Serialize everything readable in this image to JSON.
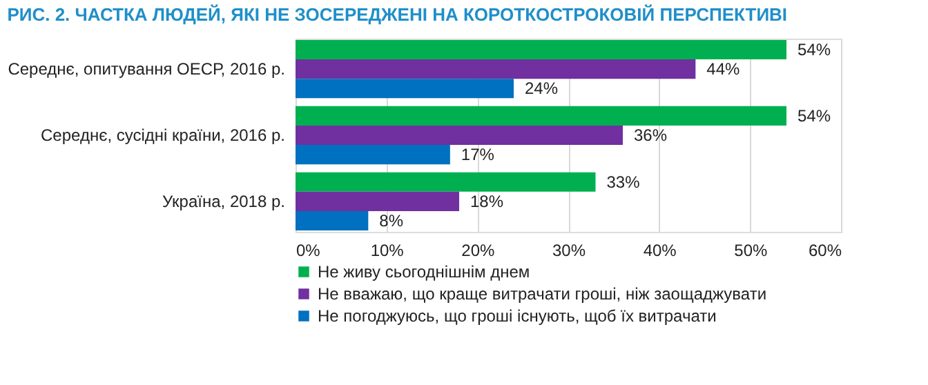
{
  "chart_data": {
    "type": "bar",
    "orientation": "horizontal",
    "title": "РИС. 2. ЧАСТКА ЛЮДЕЙ, ЯКІ НЕ ЗОСЕРЕДЖЕНІ НА КОРОТКОСТРОКОВІЙ ПЕРСПЕКТИВІ",
    "categories": [
      "Середнє, опитування ОЕСР, 2016 р.",
      "Середнє, сусідні країни, 2016 р.",
      "Україна, 2018 р."
    ],
    "series": [
      {
        "name": "Не живу сьогоднішнім днем",
        "color": "#00b050",
        "values": [
          54,
          54,
          33
        ],
        "value_labels": [
          "54%",
          "54%",
          "33%"
        ]
      },
      {
        "name": "Не вважаю, що краще витрачати гроші, ніж заощаджувати",
        "color": "#7030a0",
        "values": [
          44,
          36,
          18
        ],
        "value_labels": [
          "44%",
          "36%",
          "18%"
        ]
      },
      {
        "name": "Не погоджуюсь, що гроші існують, щоб їх витрачати",
        "color": "#0070c0",
        "values": [
          24,
          17,
          8
        ],
        "value_labels": [
          "24%",
          "17%",
          "8%"
        ]
      }
    ],
    "xlim": [
      0,
      60
    ],
    "xticks": [
      {
        "value": 0,
        "label": "0%"
      },
      {
        "value": 10,
        "label": "10%"
      },
      {
        "value": 20,
        "label": "20%"
      },
      {
        "value": 30,
        "label": "30%"
      },
      {
        "value": 40,
        "label": "40%"
      },
      {
        "value": 50,
        "label": "50%"
      },
      {
        "value": 60,
        "label": "60%"
      }
    ],
    "grid": "x",
    "legend": "bottom left"
  }
}
